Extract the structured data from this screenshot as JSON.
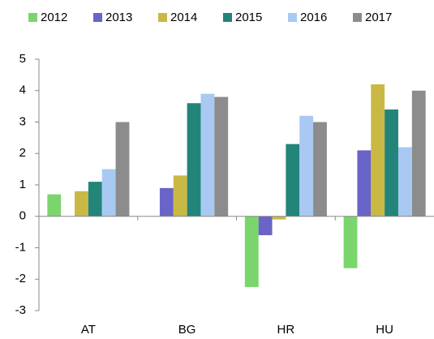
{
  "chart_data": {
    "type": "bar",
    "categories": [
      "AT",
      "BG",
      "HR",
      "HU"
    ],
    "series": [
      {
        "name": "2012",
        "color": "#7ad66c",
        "values": [
          0.7,
          0,
          -2.25,
          -1.65
        ]
      },
      {
        "name": "2013",
        "color": "#6a64c8",
        "values": [
          0,
          0.9,
          -0.6,
          2.1
        ]
      },
      {
        "name": "2014",
        "color": "#c9b944",
        "values": [
          0.8,
          1.3,
          -0.1,
          4.2
        ]
      },
      {
        "name": "2015",
        "color": "#23847a",
        "values": [
          1.1,
          3.6,
          2.3,
          3.4
        ]
      },
      {
        "name": "2016",
        "color": "#a9c9f2",
        "values": [
          1.5,
          3.9,
          3.2,
          2.2
        ]
      },
      {
        "name": "2017",
        "color": "#8c8c8c",
        "values": [
          3.0,
          3.8,
          3.0,
          4.0
        ]
      }
    ],
    "ylim": [
      -3,
      5
    ],
    "yticks": [
      -3,
      -2,
      -1,
      0,
      1,
      2,
      3,
      4,
      5
    ],
    "grid": false,
    "legend": "top"
  }
}
